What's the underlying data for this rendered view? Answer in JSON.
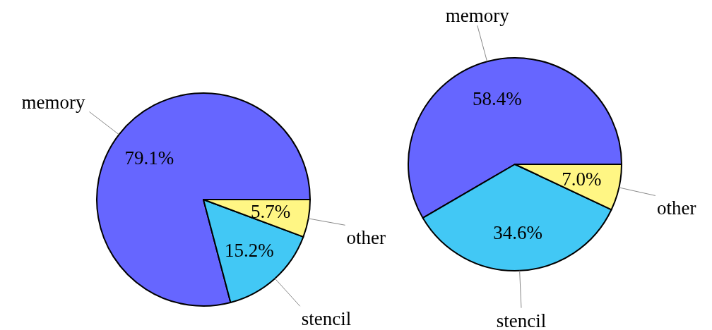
{
  "chart_data": [
    {
      "type": "pie",
      "categories": [
        "memory",
        "stencil",
        "other"
      ],
      "values": [
        79.1,
        15.2,
        5.7
      ],
      "value_labels": [
        "79.1%",
        "15.2%",
        "5.7%"
      ],
      "colors": [
        "#6666ff",
        "#42c8f5",
        "#fff684"
      ]
    },
    {
      "type": "pie",
      "categories": [
        "memory",
        "stencil",
        "other"
      ],
      "values": [
        58.4,
        34.6,
        7.0
      ],
      "value_labels": [
        "58.4%",
        "34.6%",
        "7.0%"
      ],
      "colors": [
        "#6666ff",
        "#42c8f5",
        "#fff684"
      ]
    }
  ]
}
